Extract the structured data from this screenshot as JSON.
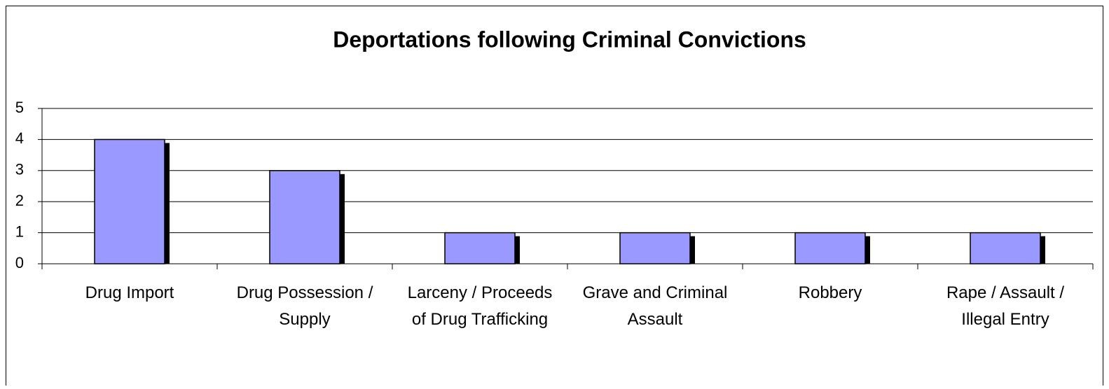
{
  "chart_data": {
    "type": "bar",
    "title": "Deportations following Criminal Convictions",
    "categories": [
      "Drug Import",
      "Drug Possession / Supply",
      "Larceny / Proceeds of Drug Trafficking",
      "Grave and Criminal Assault",
      "Robbery",
      "Rape / Assault / Illegal Entry"
    ],
    "values": [
      4,
      3,
      1,
      1,
      1,
      1
    ],
    "color": "#9999ff",
    "ylim": [
      0,
      5
    ],
    "yticks": [
      0,
      1,
      2,
      3,
      4,
      5
    ],
    "grid": true
  }
}
